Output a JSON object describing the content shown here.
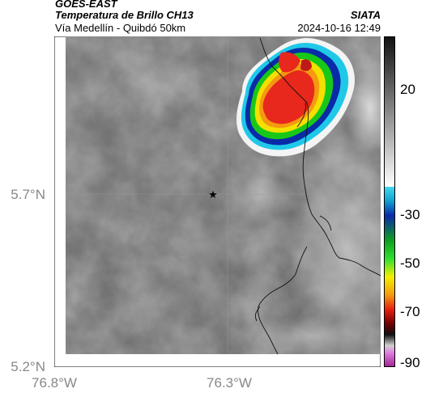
{
  "header": {
    "satellite": "GOES-EAST",
    "product": "Temperatura de Brillo CH13",
    "region": "Vía Medellín - Quibdó 50km",
    "organization": "SIATA",
    "timestamp": "2024-10-16 12:49"
  },
  "axes": {
    "y_ticks": [
      "5.7°N",
      "5.2°N"
    ],
    "x_ticks": [
      "76.8°W",
      "76.3°W"
    ]
  },
  "colorbar": {
    "ticks": [
      "20",
      "-30",
      "-50",
      "-70",
      "-90"
    ],
    "unit": ""
  },
  "marker": {
    "icon": "star-icon"
  },
  "colors": {
    "cloud_core": "#e8281c",
    "cloud_ring_yellow": "#f4e000",
    "cloud_ring_green": "#18c818",
    "cloud_ring_blue": "#0a2aa8",
    "cloud_ring_cyan": "#20c8e8"
  }
}
